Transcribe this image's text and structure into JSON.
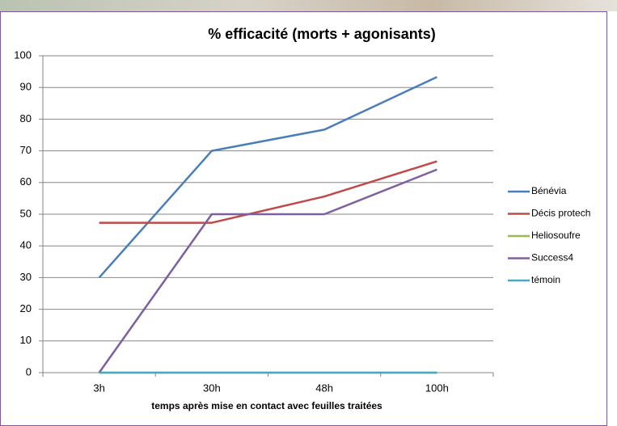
{
  "chart_data": {
    "type": "line",
    "title": "% efficacité (morts + agonisants)",
    "x_label": "temps après mise en contact avec feuilles traitées",
    "categories": [
      "3h",
      "30h",
      "48h",
      "100h"
    ],
    "series": [
      {
        "name": "Bénévia",
        "color": "#4a7ebb",
        "values": [
          30,
          70,
          76.7,
          93.3
        ]
      },
      {
        "name": "Décis protech",
        "color": "#be4b48",
        "values": [
          47.3,
          47.3,
          55.6,
          66.7
        ]
      },
      {
        "name": "Heliosoufre",
        "color": "#98b954",
        "values": [
          0,
          0,
          0,
          0
        ]
      },
      {
        "name": "Success4",
        "color": "#7d60a0",
        "values": [
          0,
          50,
          50,
          64.1
        ]
      },
      {
        "name": "témoin",
        "color": "#46aac5",
        "values": [
          0,
          0,
          0,
          0
        ]
      }
    ],
    "ylim": [
      0,
      100
    ],
    "yticks": [
      0,
      10,
      20,
      30,
      40,
      50,
      60,
      70,
      80,
      90,
      100
    ],
    "grid": true,
    "legend": "right"
  }
}
